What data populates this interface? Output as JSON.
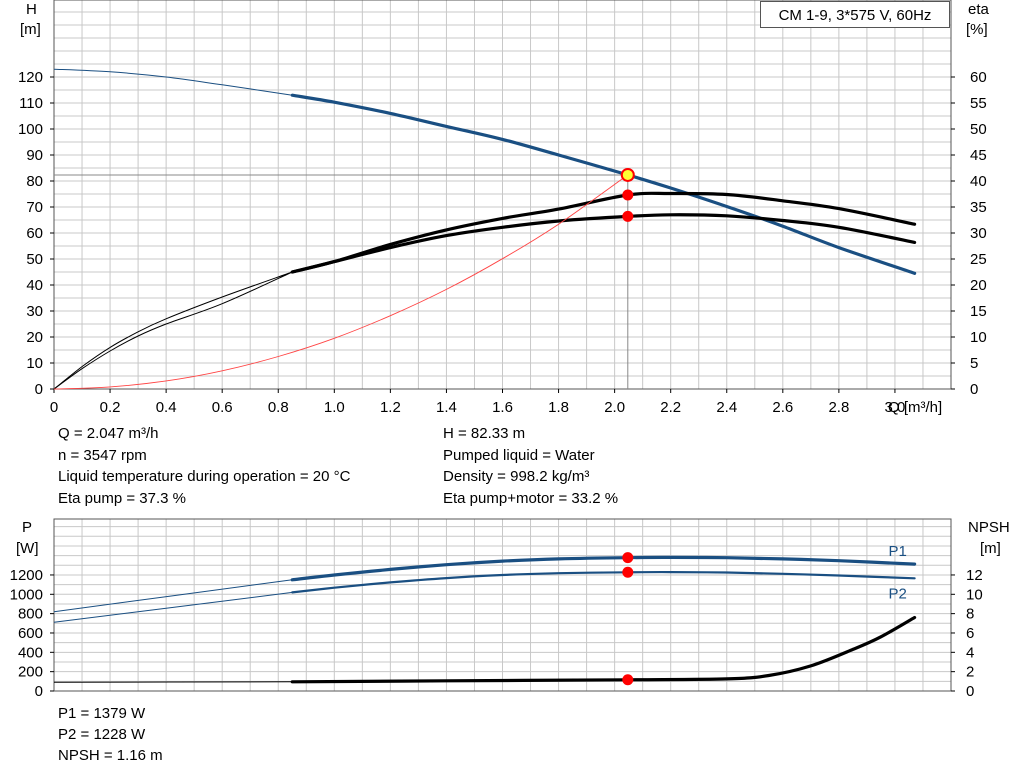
{
  "title": "CM 1-9, 3*575 V, 60Hz",
  "colors": {
    "head": "#1a4f82",
    "efficiency": "#000000",
    "system": "#ff4444",
    "marker": "#ff0000",
    "duty_marker": "#ffff33",
    "grid": "#c8c8c8"
  },
  "info_top": {
    "left": [
      "Q = 2.047 m³/h",
      "n = 3547 rpm",
      "Liquid temperature during operation = 20 °C",
      "Eta pump = 37.3 %"
    ],
    "right": [
      "H = 82.33 m",
      "Pumped liquid = Water",
      "Density = 998.2 kg/m³",
      "Eta pump+motor = 33.2 %"
    ]
  },
  "info_bottom": [
    "P1 = 1379 W",
    "P2 = 1228 W",
    "NPSH = 1.16 m"
  ],
  "chart_data": [
    {
      "type": "line",
      "name": "head-efficiency",
      "title": "CM 1-9, 3*575 V, 60Hz",
      "xlabel": "Q [m³/h]",
      "ylabel": "H [m]",
      "y2label": "eta [%]",
      "ylabel_parts": [
        "H",
        "[m]"
      ],
      "y2label_parts": [
        "eta",
        "[%]"
      ],
      "xlim": [
        0,
        3.2
      ],
      "ylim": [
        0,
        130
      ],
      "y2lim": [
        0,
        65
      ],
      "x_ticks": [
        "0",
        "0.2",
        "0.4",
        "0.6",
        "0.8",
        "1.0",
        "1.2",
        "1.4",
        "1.6",
        "1.8",
        "2.0",
        "2.2",
        "2.4",
        "2.6",
        "2.8",
        "3.0"
      ],
      "y_ticks": [
        "0",
        "10",
        "20",
        "30",
        "40",
        "50",
        "60",
        "70",
        "80",
        "90",
        "100",
        "110",
        "120"
      ],
      "y2_ticks": [
        "0",
        "5",
        "10",
        "15",
        "20",
        "25",
        "30",
        "35",
        "40",
        "45",
        "50",
        "55",
        "60"
      ],
      "grid": true,
      "series": [
        {
          "key": "H",
          "axis": "left",
          "color": "#1a4f82",
          "thick_from": 0.85,
          "x": [
            0,
            0.2,
            0.4,
            0.6,
            0.85,
            1.0,
            1.2,
            1.4,
            1.6,
            1.8,
            2.047,
            2.2,
            2.4,
            2.6,
            2.8,
            3.07
          ],
          "y": [
            123,
            122,
            120,
            117,
            113,
            110.3,
            106,
            101,
            96,
            90,
            82.33,
            77.3,
            70.2,
            62.6,
            54.4,
            44.5
          ]
        },
        {
          "key": "eta_pump",
          "axis": "right",
          "color": "#000000",
          "thick_from": 0.85,
          "x": [
            0,
            0.1,
            0.2,
            0.3,
            0.4,
            0.6,
            0.85,
            1.0,
            1.2,
            1.4,
            1.6,
            1.8,
            2.047,
            2.2,
            2.4,
            2.6,
            2.8,
            3.07
          ],
          "y": [
            0,
            4.3,
            8.0,
            11.0,
            13.5,
            17.7,
            22.5,
            24.5,
            27.8,
            30.6,
            32.8,
            34.6,
            37.3,
            37.6,
            37.4,
            36.2,
            34.7,
            31.7
          ]
        },
        {
          "key": "eta_total",
          "axis": "right",
          "color": "#000000",
          "thick_from": 0.85,
          "bold": true,
          "x": [
            0,
            0.1,
            0.2,
            0.3,
            0.4,
            0.6,
            0.85,
            1.0,
            1.2,
            1.4,
            1.6,
            1.8,
            2.047,
            2.2,
            2.4,
            2.6,
            2.8,
            3.07
          ],
          "y": [
            0,
            3.9,
            7.3,
            10.2,
            12.5,
            16.4,
            22.5,
            24.5,
            27.2,
            29.5,
            31.1,
            32.3,
            33.2,
            33.5,
            33.3,
            32.4,
            31.1,
            28.2
          ]
        },
        {
          "key": "system",
          "axis": "left",
          "color": "#ff4444",
          "thin": true,
          "x": [
            0,
            0.2,
            0.4,
            0.6,
            0.8,
            1.0,
            1.2,
            1.4,
            1.6,
            1.8,
            2.047
          ],
          "y": [
            0,
            0.8,
            3.1,
            7.0,
            12.5,
            19.5,
            28.2,
            38.3,
            50.1,
            63.4,
            82.33
          ]
        }
      ],
      "markers": [
        {
          "x": 2.047,
          "y": 82.33,
          "axis": "left",
          "kind": "duty"
        },
        {
          "x": 2.047,
          "y": 37.3,
          "axis": "right",
          "kind": "point"
        },
        {
          "x": 2.047,
          "y": 33.2,
          "axis": "right",
          "kind": "point"
        }
      ]
    },
    {
      "type": "line",
      "name": "power-npsh",
      "xlim": [
        0,
        3.2
      ],
      "ylim": [
        0,
        1400
      ],
      "y2lim": [
        0,
        14
      ],
      "ylabel": "P [W]",
      "y2label": "NPSH [m]",
      "ylabel_parts": [
        "P",
        "[W]"
      ],
      "y2label_parts": [
        "NPSH",
        "[m]"
      ],
      "y_ticks": [
        "0",
        "200",
        "400",
        "600",
        "800",
        "1000",
        "1200"
      ],
      "y2_ticks": [
        "0",
        "2",
        "4",
        "6",
        "8",
        "10",
        "12"
      ],
      "grid": true,
      "series": [
        {
          "key": "P1",
          "label": "P1",
          "axis": "left",
          "color": "#1a4f82",
          "thick_from": 0.85,
          "x": [
            0,
            0.85,
            1.0,
            1.2,
            1.4,
            1.6,
            1.8,
            2.047,
            2.2,
            2.4,
            2.6,
            2.8,
            3.07
          ],
          "y": [
            820,
            1150,
            1200,
            1257,
            1306,
            1343,
            1366,
            1379,
            1382,
            1378,
            1366,
            1347,
            1312
          ]
        },
        {
          "key": "P2",
          "label": "P2",
          "axis": "left",
          "color": "#1a4f82",
          "thick_from": 0.85,
          "medium": true,
          "x": [
            0,
            0.85,
            1.0,
            1.2,
            1.4,
            1.6,
            1.8,
            2.047,
            2.2,
            2.4,
            2.6,
            2.8,
            3.07
          ],
          "y": [
            710,
            1020,
            1068,
            1123,
            1168,
            1200,
            1218,
            1228,
            1230,
            1225,
            1212,
            1194,
            1165
          ]
        },
        {
          "key": "NPSH",
          "axis": "right",
          "color": "#000000",
          "thick_from": 0.85,
          "bold": true,
          "x": [
            0,
            0.85,
            1.4,
            2.047,
            2.4,
            2.55,
            2.7,
            2.85,
            2.95,
            3.07
          ],
          "y": [
            0.9,
            0.95,
            1.05,
            1.16,
            1.25,
            1.6,
            2.6,
            4.3,
            5.6,
            7.6
          ]
        }
      ],
      "markers": [
        {
          "x": 2.047,
          "y": 1379,
          "axis": "left",
          "kind": "point"
        },
        {
          "x": 2.047,
          "y": 1228,
          "axis": "left",
          "kind": "point"
        },
        {
          "x": 2.047,
          "y": 1.16,
          "axis": "right",
          "kind": "point"
        }
      ]
    }
  ]
}
